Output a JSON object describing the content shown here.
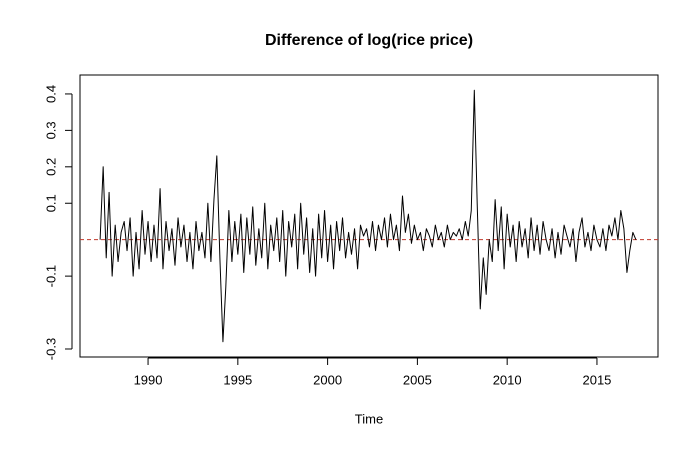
{
  "chart_data": {
    "type": "line",
    "title": "Difference of log(rice price)",
    "xlabel": "Time",
    "x": [
      1987.33,
      1987.5,
      1987.67,
      1987.83,
      1988,
      1988.17,
      1988.33,
      1988.5,
      1988.67,
      1988.83,
      1989,
      1989.17,
      1989.33,
      1989.5,
      1989.67,
      1989.83,
      1990,
      1990.17,
      1990.33,
      1990.5,
      1990.67,
      1990.83,
      1991,
      1991.17,
      1991.33,
      1991.5,
      1991.67,
      1991.83,
      1992,
      1992.17,
      1992.33,
      1992.5,
      1992.67,
      1992.83,
      1993,
      1993.17,
      1993.33,
      1993.5,
      1993.67,
      1993.83,
      1994,
      1994.17,
      1994.33,
      1994.5,
      1994.67,
      1994.83,
      1995,
      1995.17,
      1995.33,
      1995.5,
      1995.67,
      1995.83,
      1996,
      1996.17,
      1996.33,
      1996.5,
      1996.67,
      1996.83,
      1997,
      1997.17,
      1997.33,
      1997.5,
      1997.67,
      1997.83,
      1998,
      1998.17,
      1998.33,
      1998.5,
      1998.67,
      1998.83,
      1999,
      1999.17,
      1999.33,
      1999.5,
      1999.67,
      1999.83,
      2000,
      2000.17,
      2000.33,
      2000.5,
      2000.67,
      2000.83,
      2001,
      2001.17,
      2001.33,
      2001.5,
      2001.67,
      2001.83,
      2002,
      2002.17,
      2002.33,
      2002.5,
      2002.67,
      2002.83,
      2003,
      2003.17,
      2003.33,
      2003.5,
      2003.67,
      2003.83,
      2004,
      2004.17,
      2004.33,
      2004.5,
      2004.67,
      2004.83,
      2005,
      2005.17,
      2005.33,
      2005.5,
      2005.67,
      2005.83,
      2006,
      2006.17,
      2006.33,
      2006.5,
      2006.67,
      2006.83,
      2007,
      2007.17,
      2007.33,
      2007.5,
      2007.67,
      2007.83,
      2008,
      2008.17,
      2008.33,
      2008.5,
      2008.67,
      2008.83,
      2009,
      2009.17,
      2009.33,
      2009.5,
      2009.67,
      2009.83,
      2010,
      2010.17,
      2010.33,
      2010.5,
      2010.67,
      2010.83,
      2011,
      2011.17,
      2011.33,
      2011.5,
      2011.67,
      2011.83,
      2012,
      2012.17,
      2012.33,
      2012.5,
      2012.67,
      2012.83,
      2013,
      2013.17,
      2013.33,
      2013.5,
      2013.67,
      2013.83,
      2014,
      2014.17,
      2014.33,
      2014.5,
      2014.67,
      2014.83,
      2015,
      2015.17,
      2015.33,
      2015.5,
      2015.67,
      2015.83,
      2016,
      2016.17,
      2016.33,
      2016.5,
      2016.67,
      2016.83,
      2017,
      2017.17
    ],
    "values": [
      0.0,
      0.2,
      -0.05,
      0.13,
      -0.1,
      0.04,
      -0.06,
      0.02,
      0.05,
      -0.03,
      0.06,
      -0.1,
      0.02,
      -0.08,
      0.08,
      -0.04,
      0.05,
      -0.06,
      0.04,
      -0.05,
      0.14,
      -0.08,
      0.05,
      -0.03,
      0.03,
      -0.07,
      0.06,
      -0.02,
      0.04,
      -0.06,
      0.02,
      -0.08,
      0.05,
      -0.03,
      0.02,
      -0.05,
      0.1,
      -0.06,
      0.11,
      0.23,
      -0.05,
      -0.28,
      -0.13,
      0.08,
      -0.06,
      0.05,
      -0.04,
      0.07,
      -0.09,
      0.06,
      -0.04,
      0.09,
      -0.07,
      0.03,
      -0.05,
      0.1,
      -0.08,
      0.04,
      -0.03,
      0.06,
      -0.06,
      0.08,
      -0.1,
      0.05,
      -0.02,
      0.07,
      -0.08,
      0.1,
      -0.04,
      0.06,
      -0.09,
      0.03,
      -0.1,
      0.07,
      -0.05,
      0.08,
      -0.06,
      0.04,
      -0.08,
      0.05,
      -0.03,
      0.06,
      -0.05,
      0.02,
      -0.04,
      0.03,
      -0.08,
      0.04,
      0.01,
      0.03,
      -0.02,
      0.05,
      -0.03,
      0.04,
      0.0,
      0.06,
      -0.02,
      0.07,
      0.0,
      0.04,
      -0.03,
      0.12,
      0.02,
      0.07,
      -0.01,
      0.04,
      0.0,
      0.02,
      -0.03,
      0.03,
      0.01,
      -0.02,
      0.04,
      0.0,
      0.02,
      -0.02,
      0.04,
      0.0,
      0.02,
      0.01,
      0.03,
      0.0,
      0.05,
      0.01,
      0.08,
      0.41,
      0.1,
      -0.19,
      -0.05,
      -0.15,
      0.0,
      -0.06,
      0.11,
      -0.03,
      0.09,
      -0.08,
      0.07,
      -0.02,
      0.04,
      -0.06,
      0.05,
      -0.02,
      0.03,
      -0.05,
      0.06,
      -0.03,
      0.04,
      -0.04,
      0.05,
      0.0,
      -0.03,
      0.03,
      -0.05,
      0.02,
      -0.04,
      0.04,
      0.01,
      -0.02,
      0.03,
      -0.06,
      0.02,
      0.06,
      -0.02,
      0.02,
      -0.03,
      0.04,
      0.0,
      -0.02,
      0.03,
      -0.03,
      0.04,
      0.01,
      0.06,
      0.0,
      0.08,
      0.03,
      -0.09,
      -0.03,
      0.02,
      0.0
    ],
    "color": "#000000",
    "hline": 0,
    "hline_color": "#c0392b",
    "xlim": [
      1986.21,
      2018.4
    ],
    "xticks": [
      1990,
      1995,
      2000,
      2005,
      2010,
      2015
    ],
    "ylim": [
      -0.322,
      0.452
    ],
    "yticks": [
      -0.3,
      -0.1,
      0.1,
      0.2,
      0.3,
      0.4
    ]
  }
}
